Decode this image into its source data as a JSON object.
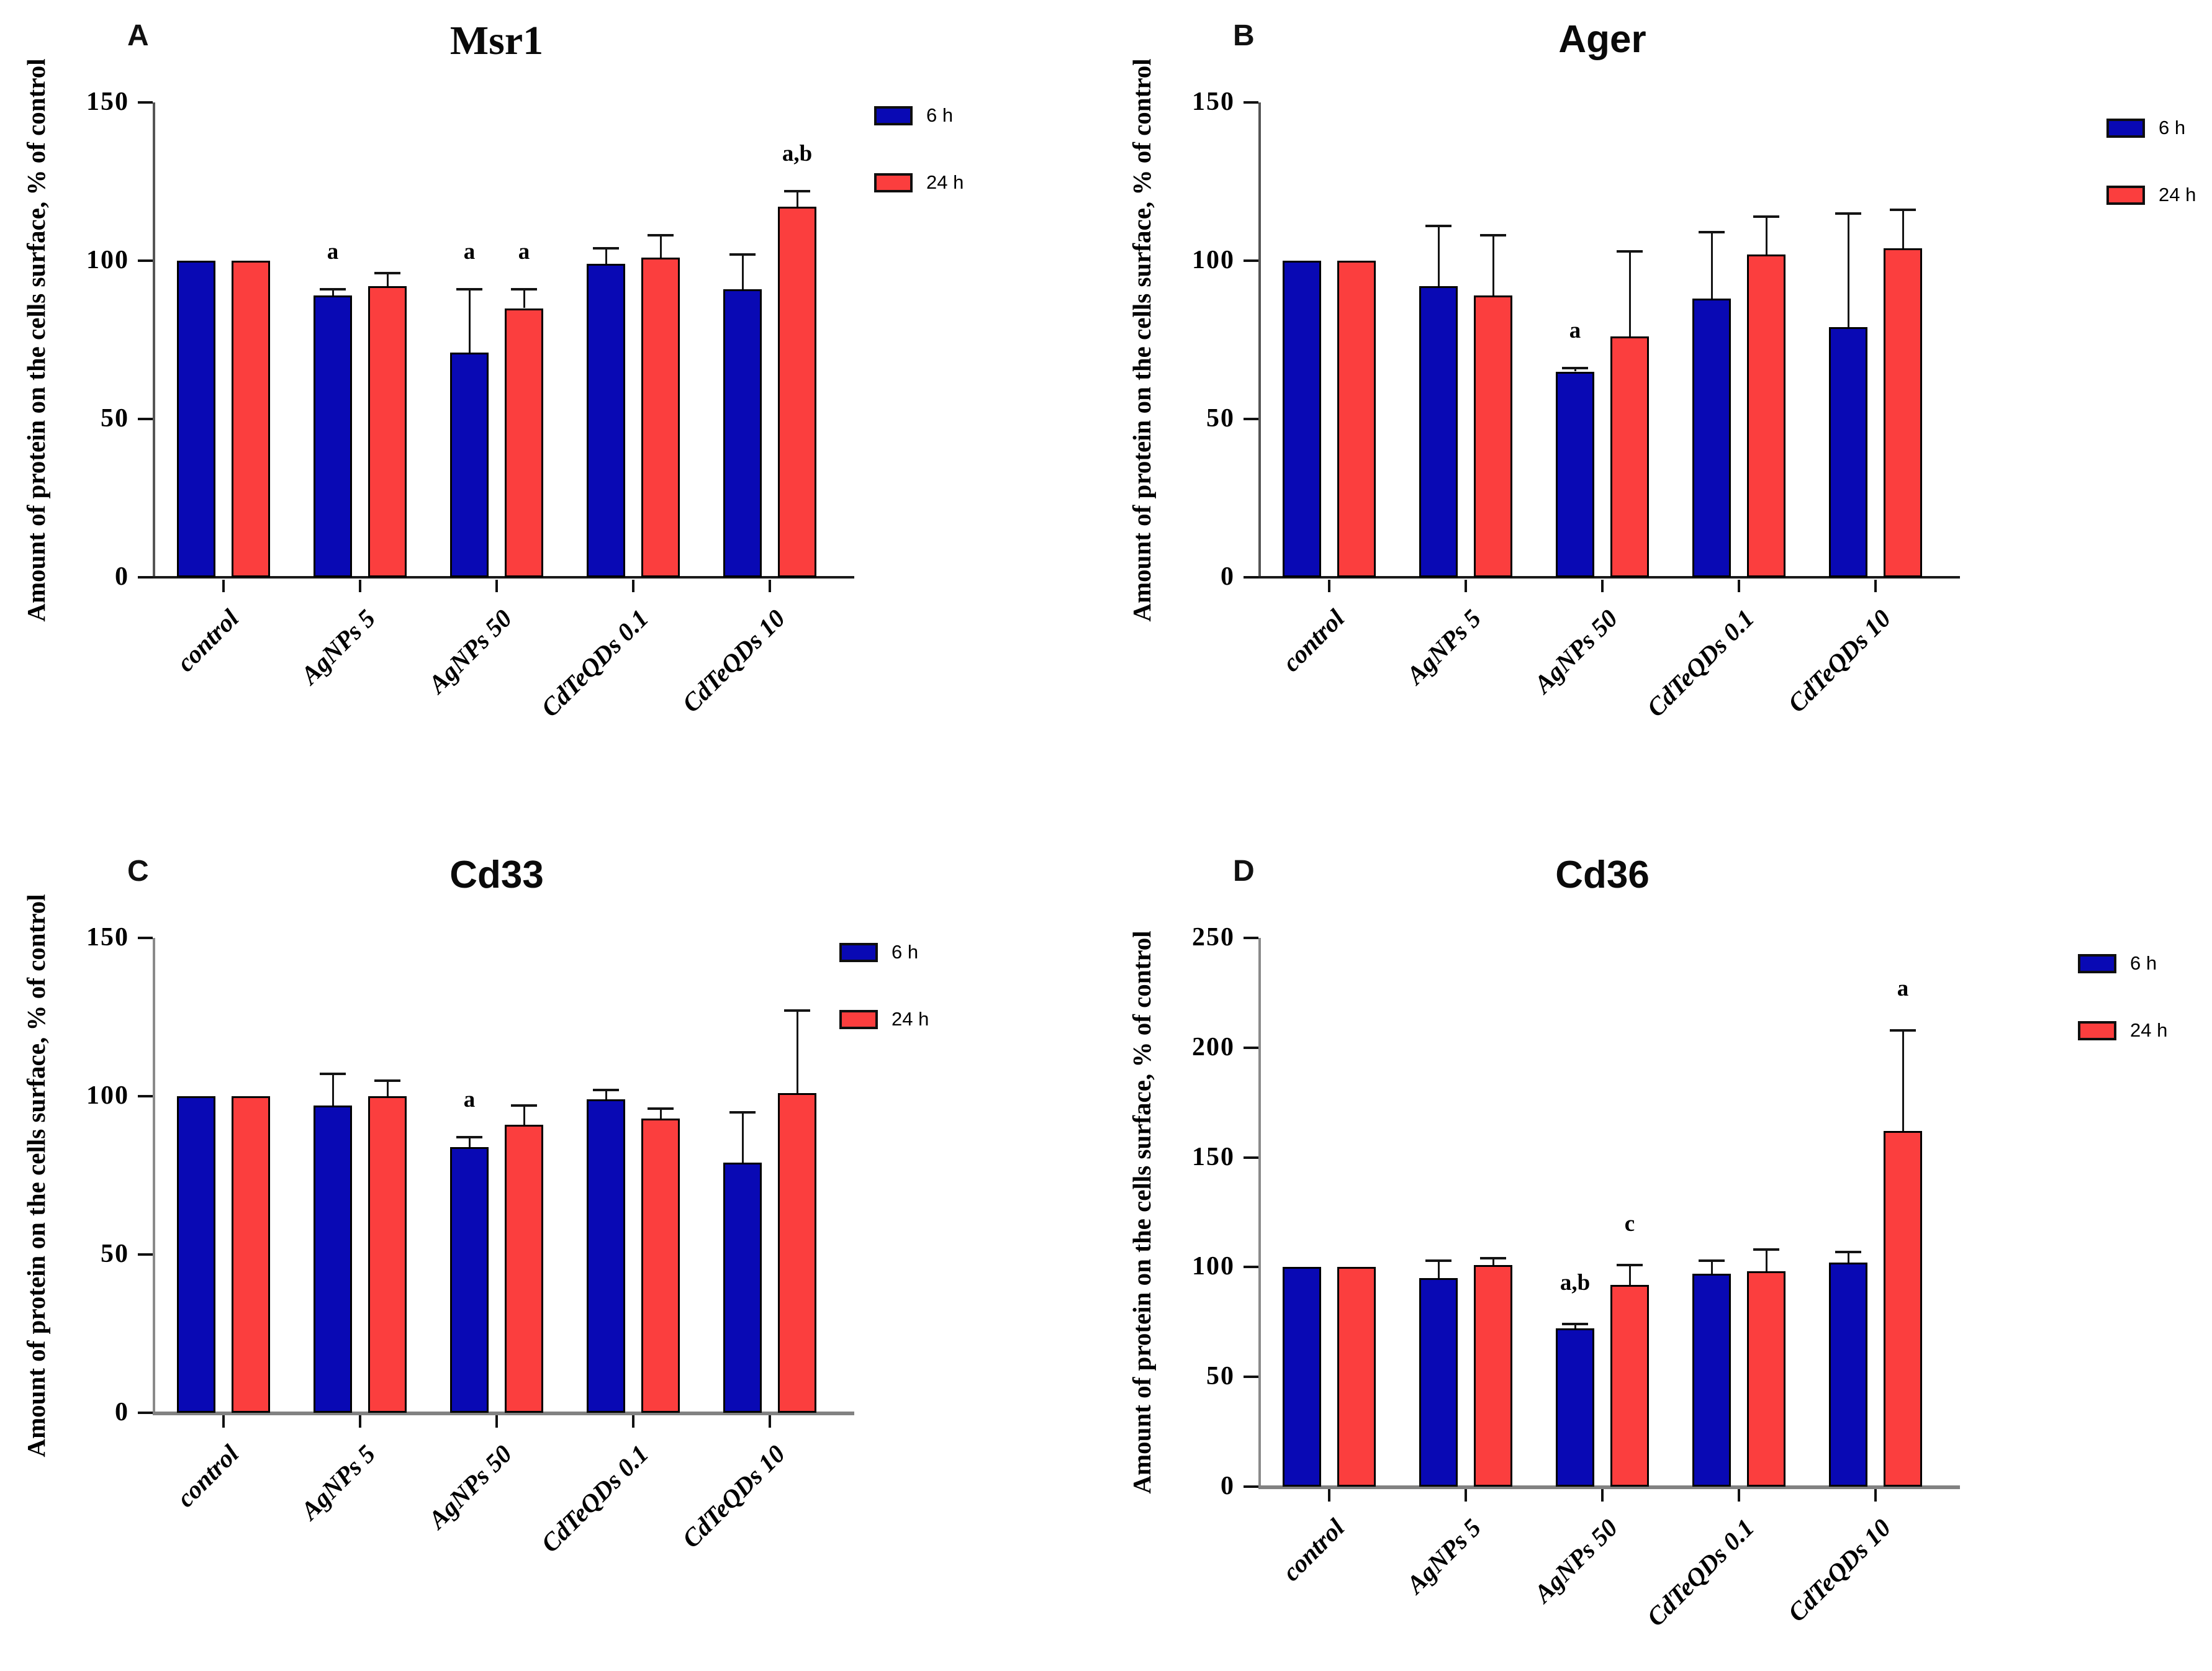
{
  "legend": {
    "items": [
      {
        "label": "6 h",
        "color": "#0909B4"
      },
      {
        "label": "24 h",
        "color": "#FB3E3E"
      }
    ]
  },
  "chart_data": [
    {
      "panel_letter": "A",
      "type": "bar",
      "title": "Msr1",
      "ylabel": "Amount of protein on the cells surface, % of control",
      "xlabel": "",
      "ylim": [
        0,
        150
      ],
      "yticks": [
        0,
        50,
        100,
        150
      ],
      "grid": false,
      "legend_position": "right-top",
      "categories": [
        "control",
        "AgNPs 5",
        "AgNPs 50",
        "CdTeQDs 0.1",
        "CdTeQDs 10"
      ],
      "series": [
        {
          "name": "6 h",
          "color": "#0909B4",
          "values": [
            100,
            89,
            71,
            99,
            91
          ],
          "errors": [
            0,
            2,
            20,
            5,
            11
          ],
          "annotations": [
            "",
            "a",
            "a",
            "",
            ""
          ]
        },
        {
          "name": "24 h",
          "color": "#FB3E3E",
          "values": [
            100,
            92,
            85,
            101,
            117
          ],
          "errors": [
            0,
            4,
            6,
            7,
            5
          ],
          "annotations": [
            "",
            "",
            "a",
            "",
            "a,b"
          ]
        }
      ]
    },
    {
      "panel_letter": "B",
      "type": "bar",
      "title": "Ager",
      "ylabel": "Amount of protein on the cells surface, % of control",
      "xlabel": "",
      "ylim": [
        0,
        150
      ],
      "yticks": [
        0,
        50,
        100,
        150
      ],
      "grid": false,
      "legend_position": "right-top",
      "categories": [
        "control",
        "AgNPs 5",
        "AgNPs 50",
        "CdTeQDs 0.1",
        "CdTeQDs 10"
      ],
      "series": [
        {
          "name": "6 h",
          "color": "#0909B4",
          "values": [
            100,
            92,
            65,
            88,
            79
          ],
          "errors": [
            0,
            19,
            1,
            21,
            36
          ],
          "annotations": [
            "",
            "",
            "a",
            "",
            ""
          ]
        },
        {
          "name": "24 h",
          "color": "#FB3E3E",
          "values": [
            100,
            89,
            76,
            102,
            104
          ],
          "errors": [
            0,
            19,
            27,
            12,
            12
          ],
          "annotations": [
            "",
            "",
            "",
            "",
            ""
          ]
        }
      ]
    },
    {
      "panel_letter": "C",
      "type": "bar",
      "title": "Cd33",
      "ylabel": "Amount of protein on the cells surface, % of control",
      "xlabel": "",
      "ylim": [
        0,
        150
      ],
      "yticks": [
        0,
        50,
        100,
        150
      ],
      "grid": false,
      "legend_position": "right-top",
      "categories": [
        "control",
        "AgNPs 5",
        "AgNPs 50",
        "CdTeQDs 0.1",
        "CdTeQDs 10"
      ],
      "series": [
        {
          "name": "6 h",
          "color": "#0909B4",
          "values": [
            100,
            97,
            84,
            99,
            79
          ],
          "errors": [
            0,
            10,
            3,
            3,
            16
          ],
          "annotations": [
            "",
            "",
            "a",
            "",
            ""
          ]
        },
        {
          "name": "24 h",
          "color": "#FB3E3E",
          "values": [
            100,
            100,
            91,
            93,
            101
          ],
          "errors": [
            0,
            5,
            6,
            3,
            26
          ],
          "annotations": [
            "",
            "",
            "",
            "",
            ""
          ]
        }
      ]
    },
    {
      "panel_letter": "D",
      "type": "bar",
      "title": "Cd36",
      "ylabel": "Amount of protein on the cells surface, % of control",
      "xlabel": "",
      "ylim": [
        0,
        250
      ],
      "yticks": [
        0,
        50,
        100,
        150,
        200,
        250
      ],
      "grid": false,
      "legend_position": "right-top",
      "categories": [
        "control",
        "AgNPs 5",
        "AgNPs 50",
        "CdTeQDs 0.1",
        "CdTeQDs 10"
      ],
      "series": [
        {
          "name": "6 h",
          "color": "#0909B4",
          "values": [
            100,
            95,
            72,
            97,
            102
          ],
          "errors": [
            0,
            8,
            2,
            6,
            5
          ],
          "annotations": [
            "",
            "",
            "a,b",
            "",
            ""
          ]
        },
        {
          "name": "24 h",
          "color": "#FB3E3E",
          "values": [
            100,
            101,
            92,
            98,
            162
          ],
          "errors": [
            0,
            3,
            9,
            10,
            46
          ],
          "annotations": [
            "",
            "",
            "c",
            "",
            "a"
          ]
        }
      ]
    }
  ]
}
